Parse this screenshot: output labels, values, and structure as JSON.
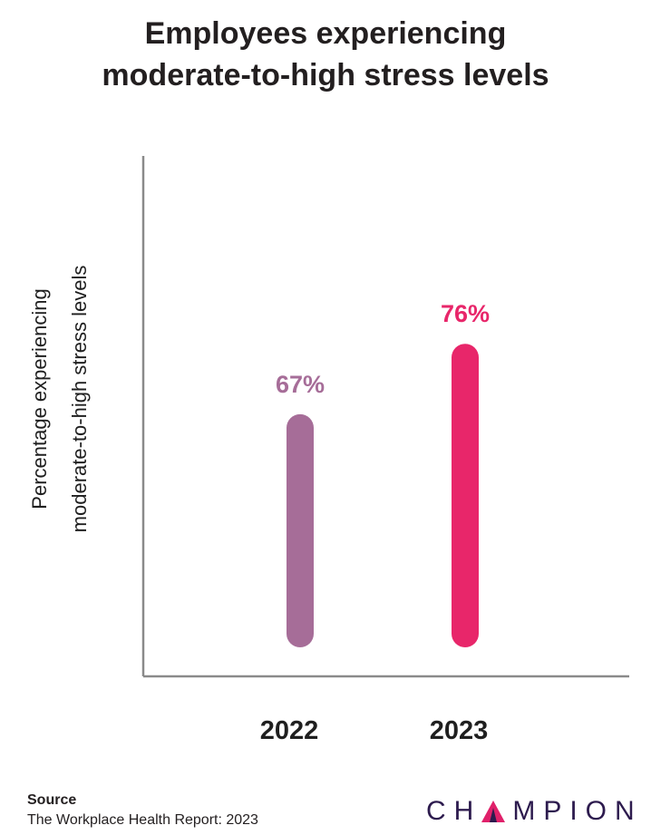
{
  "chart_data": {
    "type": "bar",
    "title": [
      "Employees experiencing",
      "moderate-to-high stress levels"
    ],
    "ylabel": [
      "Percentage experiencing",
      "moderate-to-high stress levels"
    ],
    "xlabel": "",
    "categories": [
      "2022",
      "2023"
    ],
    "values": [
      67,
      76
    ],
    "data_labels": [
      "67%",
      "76%"
    ],
    "colors": [
      "#a66d98",
      "#e8266a"
    ],
    "ylim": [
      40,
      100
    ],
    "grid": false,
    "legend": "none"
  },
  "source": {
    "heading": "Source",
    "text": "The Workplace Health Report: 2023"
  },
  "brand": {
    "name_start": "CH",
    "name_end": "MPION",
    "logo_mark": "triangle-a-logo",
    "color": "#2d1b4e",
    "accent": "#e0206a"
  }
}
